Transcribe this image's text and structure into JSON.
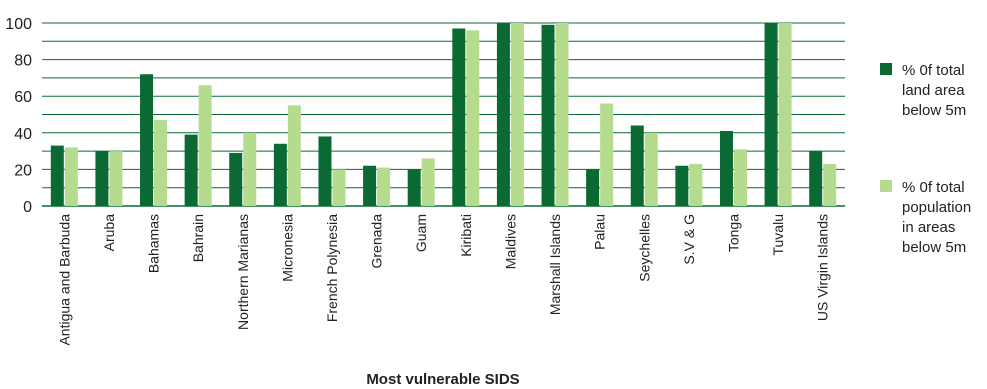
{
  "chart_data": {
    "type": "bar",
    "xlabel": "Most vulnerable SIDS",
    "ylabel": "",
    "ylim": [
      0,
      100
    ],
    "yticks": [
      0,
      20,
      40,
      60,
      80,
      100
    ],
    "grid": true,
    "legend_position": "right",
    "categories": [
      "Antigua and Barbuda",
      "Aruba",
      "Bahamas",
      "Bahrain",
      "Northern Marianas",
      "Micronesia",
      "French Polynesia",
      "Grenada",
      "Guam",
      "Kiribati",
      "Maldives",
      "Marshall Islands",
      "Palau",
      "Seychelles",
      "S.V & G",
      "Tonga",
      "Tuvalu",
      "US Virgin Islands"
    ],
    "series": [
      {
        "name": "% 0f total land area below 5m",
        "color": "#0b6a33",
        "values": [
          33,
          30,
          72,
          39,
          29,
          34,
          38,
          22,
          20,
          97,
          100,
          99,
          20,
          44,
          22,
          41,
          100,
          30
        ]
      },
      {
        "name": "% 0f total population in areas below 5m",
        "color": "#b5dc8e",
        "values": [
          32,
          30,
          47,
          66,
          40,
          55,
          20,
          21,
          26,
          96,
          100,
          100,
          56,
          40,
          23,
          31,
          100,
          23
        ]
      }
    ]
  },
  "legend": {
    "item1": "% 0f total\nland area\nbelow 5m",
    "item2": "% 0f total\npopulation\nin areas\nbelow 5m"
  }
}
